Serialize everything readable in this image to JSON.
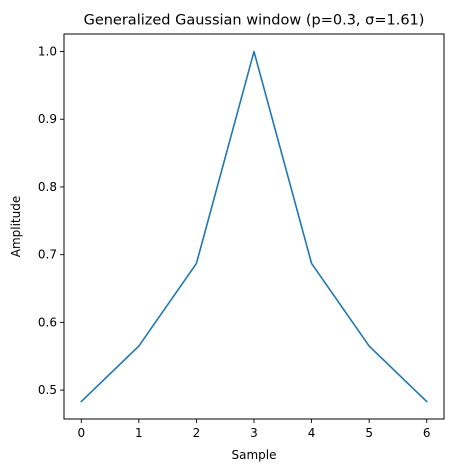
{
  "chart_data": {
    "type": "line",
    "title": "Generalized Gaussian window (p=0.3, σ=1.61)",
    "xlabel": "Sample",
    "ylabel": "Amplitude",
    "x": [
      0,
      1,
      2,
      3,
      4,
      5,
      6
    ],
    "series": [
      {
        "values": [
          0.483,
          0.565,
          0.687,
          1.0,
          0.687,
          0.565,
          0.483
        ],
        "color": "#1f77b4"
      }
    ],
    "xlim": [
      -0.3,
      6.3
    ],
    "ylim": [
      0.4573,
      1.0259
    ],
    "xticks": [
      "0",
      "1",
      "2",
      "3",
      "4",
      "5",
      "6"
    ],
    "yticks": [
      "0.5",
      "0.6",
      "0.7",
      "0.8",
      "0.9",
      "1.0"
    ],
    "grid": false,
    "legend": "none"
  }
}
